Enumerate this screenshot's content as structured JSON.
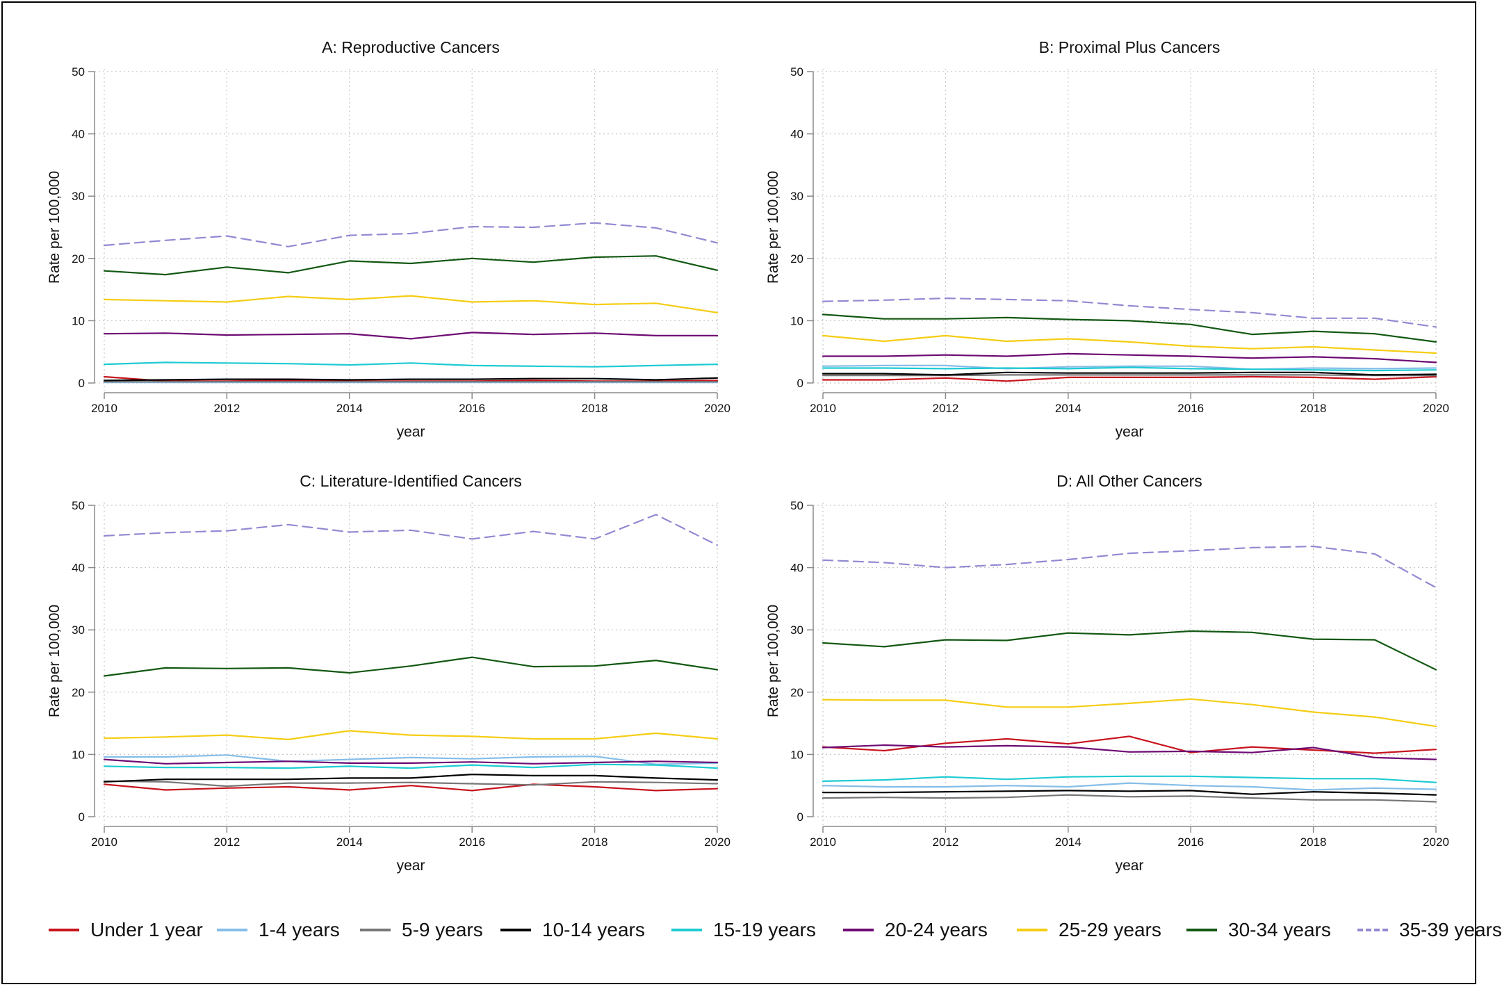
{
  "colors": {
    "Under 1 year": "#c8141e",
    "1-4 years": "#85bde8",
    "5-9 years": "#777777",
    "10-14 years": "#000000",
    "15-19 years": "#1ecbd2",
    "20-24 years": "#6e0a73",
    "25-29 years": "#f5cd13",
    "30-34 years": "#125812",
    "35-39 years": "#918ad2"
  },
  "legend": {
    "items": [
      "Under 1 year",
      "1-4 years",
      "5-9 years",
      "10-14 years",
      "15-19 years",
      "20-24 years",
      "25-29 years",
      "30-34 years",
      "35-39 years"
    ],
    "placement": "bottom",
    "dashed": [
      "35-39 years"
    ]
  },
  "chart_data": [
    {
      "type": "line",
      "title": "A: Reproductive Cancers",
      "xlabel": "year",
      "ylabel": "Rate per 100,000",
      "xlim": [
        2010,
        2020
      ],
      "ylim": [
        0,
        50
      ],
      "xticks": [
        2010,
        2012,
        2014,
        2016,
        2018,
        2020
      ],
      "yticks": [
        0,
        10,
        20,
        30,
        40,
        50
      ],
      "grid": true,
      "x": [
        2010,
        2011,
        2012,
        2013,
        2014,
        2015,
        2016,
        2017,
        2018,
        2019,
        2020
      ],
      "series": [
        {
          "name": "Under 1 year",
          "values": [
            1.0,
            0.3,
            0.3,
            0.4,
            0.3,
            0.3,
            0.3,
            0.4,
            0.3,
            0.3,
            0.4
          ]
        },
        {
          "name": "1-4 years",
          "values": [
            0.1,
            0.1,
            0.1,
            0.1,
            0.1,
            0.1,
            0.1,
            0.1,
            0.1,
            0.1,
            0.1
          ]
        },
        {
          "name": "5-9 years",
          "values": [
            0.2,
            0.2,
            0.2,
            0.2,
            0.2,
            0.2,
            0.2,
            0.2,
            0.2,
            0.2,
            0.2
          ]
        },
        {
          "name": "10-14 years",
          "values": [
            0.4,
            0.5,
            0.6,
            0.6,
            0.5,
            0.6,
            0.6,
            0.7,
            0.7,
            0.5,
            0.8
          ]
        },
        {
          "name": "15-19 years",
          "values": [
            3.0,
            3.3,
            3.2,
            3.1,
            2.9,
            3.2,
            2.8,
            2.7,
            2.6,
            2.8,
            3.0
          ]
        },
        {
          "name": "20-24 years",
          "values": [
            7.9,
            8.0,
            7.7,
            7.8,
            7.9,
            7.1,
            8.1,
            7.8,
            8.0,
            7.6,
            7.6
          ]
        },
        {
          "name": "25-29 years",
          "values": [
            13.4,
            13.2,
            13.0,
            13.9,
            13.4,
            14.0,
            13.0,
            13.2,
            12.6,
            12.8,
            11.3
          ]
        },
        {
          "name": "30-34 years",
          "values": [
            18.0,
            17.4,
            18.6,
            17.7,
            19.6,
            19.2,
            20.0,
            19.4,
            20.2,
            20.4,
            18.1
          ]
        },
        {
          "name": "35-39 years",
          "values": [
            22.1,
            22.9,
            23.6,
            21.9,
            23.7,
            24.0,
            25.1,
            25.0,
            25.7,
            24.9,
            22.5
          ]
        }
      ]
    },
    {
      "type": "line",
      "title": "B: Proximal Plus Cancers",
      "xlabel": "year",
      "ylabel": "Rate per 100,000",
      "xlim": [
        2010,
        2020
      ],
      "ylim": [
        0,
        50
      ],
      "xticks": [
        2010,
        2012,
        2014,
        2016,
        2018,
        2020
      ],
      "yticks": [
        0,
        10,
        20,
        30,
        40,
        50
      ],
      "grid": true,
      "x": [
        2010,
        2011,
        2012,
        2013,
        2014,
        2015,
        2016,
        2017,
        2018,
        2019,
        2020
      ],
      "series": [
        {
          "name": "Under 1 year",
          "values": [
            0.5,
            0.5,
            0.8,
            0.3,
            0.9,
            0.9,
            0.9,
            1.0,
            0.9,
            0.6,
            1.0
          ]
        },
        {
          "name": "1-4 years",
          "values": [
            2.7,
            2.8,
            2.8,
            2.3,
            2.6,
            2.7,
            2.7,
            2.2,
            2.4,
            2.3,
            2.4
          ]
        },
        {
          "name": "5-9 years",
          "values": [
            1.2,
            1.2,
            1.2,
            1.3,
            1.3,
            1.3,
            1.3,
            1.3,
            1.3,
            1.2,
            1.2
          ]
        },
        {
          "name": "10-14 years",
          "values": [
            1.5,
            1.5,
            1.3,
            1.7,
            1.6,
            1.6,
            1.6,
            1.7,
            1.7,
            1.3,
            1.4
          ]
        },
        {
          "name": "15-19 years",
          "values": [
            2.4,
            2.4,
            2.3,
            2.4,
            2.3,
            2.5,
            2.3,
            2.2,
            2.1,
            2.0,
            2.1
          ]
        },
        {
          "name": "20-24 years",
          "values": [
            4.3,
            4.3,
            4.5,
            4.3,
            4.7,
            4.5,
            4.3,
            4.0,
            4.2,
            3.9,
            3.3
          ]
        },
        {
          "name": "25-29 years",
          "values": [
            7.6,
            6.7,
            7.6,
            6.7,
            7.1,
            6.6,
            5.9,
            5.5,
            5.8,
            5.3,
            4.8
          ]
        },
        {
          "name": "30-34 years",
          "values": [
            11.0,
            10.3,
            10.3,
            10.5,
            10.2,
            10.0,
            9.4,
            7.8,
            8.3,
            7.9,
            6.6
          ]
        },
        {
          "name": "35-39 years",
          "values": [
            13.1,
            13.3,
            13.6,
            13.4,
            13.2,
            12.4,
            11.8,
            11.3,
            10.4,
            10.4,
            9.0
          ]
        }
      ]
    },
    {
      "type": "line",
      "title": "C: Literature-Identified Cancers",
      "xlabel": "year",
      "ylabel": "Rate per 100,000",
      "xlim": [
        2010,
        2020
      ],
      "ylim": [
        0,
        50
      ],
      "xticks": [
        2010,
        2012,
        2014,
        2016,
        2018,
        2020
      ],
      "yticks": [
        0,
        10,
        20,
        30,
        40,
        50
      ],
      "grid": true,
      "x": [
        2010,
        2011,
        2012,
        2013,
        2014,
        2015,
        2016,
        2017,
        2018,
        2019,
        2020
      ],
      "series": [
        {
          "name": "Under 1 year",
          "values": [
            5.2,
            4.3,
            4.6,
            4.8,
            4.3,
            5.0,
            4.2,
            5.2,
            4.8,
            4.2,
            4.5
          ]
        },
        {
          "name": "1-4 years",
          "values": [
            9.6,
            9.6,
            9.9,
            8.9,
            9.2,
            9.5,
            9.3,
            9.6,
            9.7,
            8.4,
            8.6
          ]
        },
        {
          "name": "5-9 years",
          "values": [
            5.7,
            5.6,
            4.9,
            5.4,
            5.4,
            5.5,
            5.3,
            5.1,
            5.6,
            5.5,
            5.3
          ]
        },
        {
          "name": "10-14 years",
          "values": [
            5.6,
            6.0,
            6.0,
            6.0,
            6.2,
            6.2,
            6.8,
            6.6,
            6.6,
            6.2,
            5.9
          ]
        },
        {
          "name": "15-19 years",
          "values": [
            8.1,
            7.9,
            7.9,
            7.8,
            8.1,
            7.8,
            8.3,
            7.9,
            8.4,
            8.3,
            7.8
          ]
        },
        {
          "name": "20-24 years",
          "values": [
            9.2,
            8.5,
            8.7,
            8.9,
            8.6,
            8.6,
            8.8,
            8.5,
            8.7,
            8.9,
            8.7
          ]
        },
        {
          "name": "25-29 years",
          "values": [
            12.6,
            12.8,
            13.1,
            12.4,
            13.8,
            13.1,
            12.9,
            12.5,
            12.5,
            13.4,
            12.5
          ]
        },
        {
          "name": "30-34 years",
          "values": [
            22.6,
            23.9,
            23.8,
            23.9,
            23.1,
            24.2,
            25.6,
            24.1,
            24.2,
            25.1,
            23.6
          ]
        },
        {
          "name": "35-39 years",
          "values": [
            45.1,
            45.6,
            45.9,
            46.9,
            45.7,
            46.0,
            44.6,
            45.8,
            44.6,
            48.5,
            43.6
          ]
        }
      ]
    },
    {
      "type": "line",
      "title": "D: All Other Cancers",
      "xlabel": "year",
      "ylabel": "Rate per 100,000",
      "xlim": [
        2010,
        2020
      ],
      "ylim": [
        0,
        50
      ],
      "xticks": [
        2010,
        2012,
        2014,
        2016,
        2018,
        2020
      ],
      "yticks": [
        0,
        10,
        20,
        30,
        40,
        50
      ],
      "grid": true,
      "x": [
        2010,
        2011,
        2012,
        2013,
        2014,
        2015,
        2016,
        2017,
        2018,
        2019,
        2020
      ],
      "series": [
        {
          "name": "Under 1 year",
          "values": [
            11.2,
            10.6,
            11.8,
            12.5,
            11.7,
            12.9,
            10.3,
            11.2,
            10.7,
            10.2,
            10.8
          ]
        },
        {
          "name": "1-4 years",
          "values": [
            5.0,
            4.8,
            4.8,
            5.0,
            4.8,
            5.4,
            5.0,
            4.8,
            4.3,
            4.6,
            4.4
          ]
        },
        {
          "name": "5-9 years",
          "values": [
            3.0,
            3.1,
            3.0,
            3.1,
            3.5,
            3.2,
            3.3,
            3.0,
            2.7,
            2.7,
            2.4
          ]
        },
        {
          "name": "10-14 years",
          "values": [
            3.9,
            3.9,
            4.0,
            4.1,
            4.2,
            4.1,
            4.2,
            3.6,
            4.0,
            3.8,
            3.5
          ]
        },
        {
          "name": "15-19 years",
          "values": [
            5.7,
            5.9,
            6.4,
            6.0,
            6.4,
            6.5,
            6.5,
            6.3,
            6.1,
            6.1,
            5.5
          ]
        },
        {
          "name": "20-24 years",
          "values": [
            11.1,
            11.5,
            11.2,
            11.4,
            11.2,
            10.4,
            10.5,
            10.3,
            11.1,
            9.5,
            9.2
          ]
        },
        {
          "name": "25-29 years",
          "values": [
            18.8,
            18.7,
            18.7,
            17.6,
            17.6,
            18.2,
            18.9,
            18.0,
            16.8,
            16.0,
            14.5
          ]
        },
        {
          "name": "30-34 years",
          "values": [
            27.9,
            27.3,
            28.4,
            28.3,
            29.5,
            29.2,
            29.8,
            29.6,
            28.5,
            28.4,
            23.6
          ]
        },
        {
          "name": "35-39 years",
          "values": [
            41.2,
            40.8,
            40.0,
            40.5,
            41.3,
            42.3,
            42.7,
            43.2,
            43.4,
            42.2,
            36.8
          ]
        }
      ]
    }
  ]
}
